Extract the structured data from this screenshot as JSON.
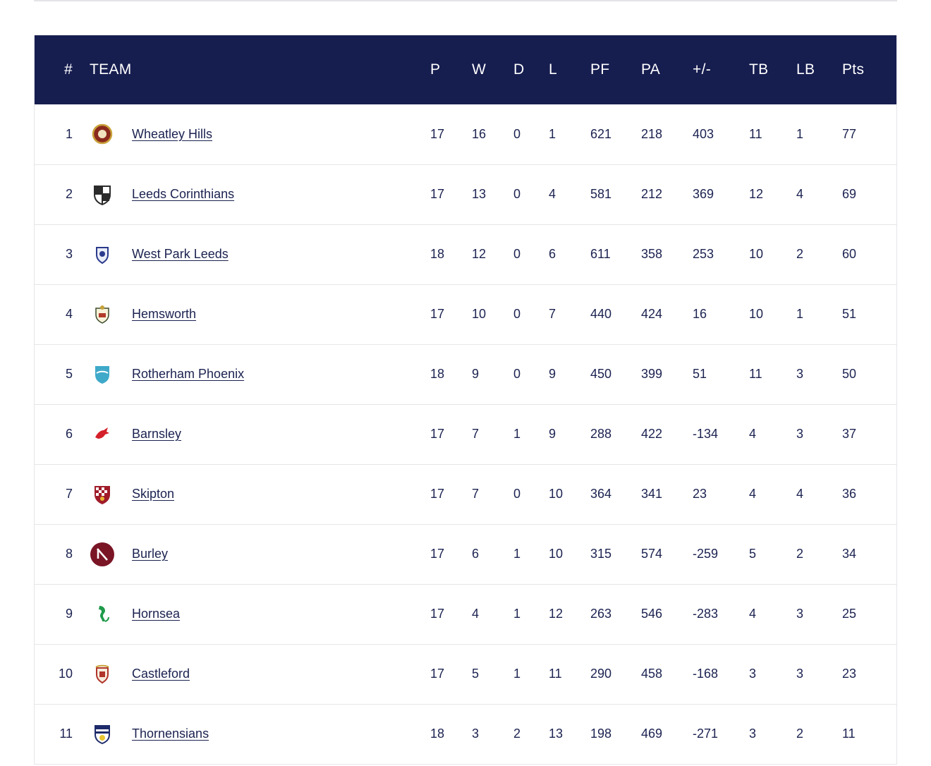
{
  "headers": {
    "pos": "#",
    "team": "TEAM",
    "p": "P",
    "w": "W",
    "d": "D",
    "l": "L",
    "pf": "PF",
    "pa": "PA",
    "diff": "+/-",
    "tb": "TB",
    "lb": "LB",
    "pts": "Pts"
  },
  "rows": [
    {
      "pos": "1",
      "team": "Wheatley Hills",
      "crest": "wheatley-hills-crest-icon",
      "crest_color": "#8a2a1d",
      "p": "17",
      "w": "16",
      "d": "0",
      "l": "1",
      "pf": "621",
      "pa": "218",
      "diff": "403",
      "tb": "11",
      "lb": "1",
      "pts": "77"
    },
    {
      "pos": "2",
      "team": "Leeds Corinthians",
      "crest": "leeds-corinthians-crest-icon",
      "crest_color": "#2b2b2b",
      "p": "17",
      "w": "13",
      "d": "0",
      "l": "4",
      "pf": "581",
      "pa": "212",
      "diff": "369",
      "tb": "12",
      "lb": "4",
      "pts": "69"
    },
    {
      "pos": "3",
      "team": "West Park Leeds",
      "crest": "west-park-leeds-crest-icon",
      "crest_color": "#2a3a8c",
      "p": "18",
      "w": "12",
      "d": "0",
      "l": "6",
      "pf": "611",
      "pa": "358",
      "diff": "253",
      "tb": "10",
      "lb": "2",
      "pts": "60"
    },
    {
      "pos": "4",
      "team": "Hemsworth",
      "crest": "hemsworth-crest-icon",
      "crest_color": "#3a4a2a",
      "p": "17",
      "w": "10",
      "d": "0",
      "l": "7",
      "pf": "440",
      "pa": "424",
      "diff": "16",
      "tb": "10",
      "lb": "1",
      "pts": "51"
    },
    {
      "pos": "5",
      "team": "Rotherham Phoenix",
      "crest": "rotherham-phoenix-crest-icon",
      "crest_color": "#3fa9c9",
      "p": "18",
      "w": "9",
      "d": "0",
      "l": "9",
      "pf": "450",
      "pa": "399",
      "diff": "51",
      "tb": "11",
      "lb": "3",
      "pts": "50"
    },
    {
      "pos": "6",
      "team": "Barnsley",
      "crest": "barnsley-crest-icon",
      "crest_color": "#d4202a",
      "p": "17",
      "w": "7",
      "d": "1",
      "l": "9",
      "pf": "288",
      "pa": "422",
      "diff": "-134",
      "tb": "4",
      "lb": "3",
      "pts": "37"
    },
    {
      "pos": "7",
      "team": "Skipton",
      "crest": "skipton-crest-icon",
      "crest_color": "#a01c2a",
      "p": "17",
      "w": "7",
      "d": "0",
      "l": "10",
      "pf": "364",
      "pa": "341",
      "diff": "23",
      "tb": "4",
      "lb": "4",
      "pts": "36"
    },
    {
      "pos": "8",
      "team": "Burley",
      "crest": "burley-crest-icon",
      "crest_color": "#7a1526",
      "p": "17",
      "w": "6",
      "d": "1",
      "l": "10",
      "pf": "315",
      "pa": "574",
      "diff": "-259",
      "tb": "5",
      "lb": "2",
      "pts": "34"
    },
    {
      "pos": "9",
      "team": "Hornsea",
      "crest": "hornsea-crest-icon",
      "crest_color": "#1f9a4a",
      "p": "17",
      "w": "4",
      "d": "1",
      "l": "12",
      "pf": "263",
      "pa": "546",
      "diff": "-283",
      "tb": "4",
      "lb": "3",
      "pts": "25"
    },
    {
      "pos": "10",
      "team": "Castleford",
      "crest": "castleford-crest-icon",
      "crest_color": "#b0342a",
      "p": "17",
      "w": "5",
      "d": "1",
      "l": "11",
      "pf": "290",
      "pa": "458",
      "diff": "-168",
      "tb": "3",
      "lb": "3",
      "pts": "23"
    },
    {
      "pos": "11",
      "team": "Thornensians",
      "crest": "thornensians-crest-icon",
      "crest_color": "#1d2a6a",
      "p": "18",
      "w": "3",
      "d": "2",
      "l": "13",
      "pf": "198",
      "pa": "469",
      "diff": "-271",
      "tb": "3",
      "lb": "2",
      "pts": "11"
    }
  ]
}
